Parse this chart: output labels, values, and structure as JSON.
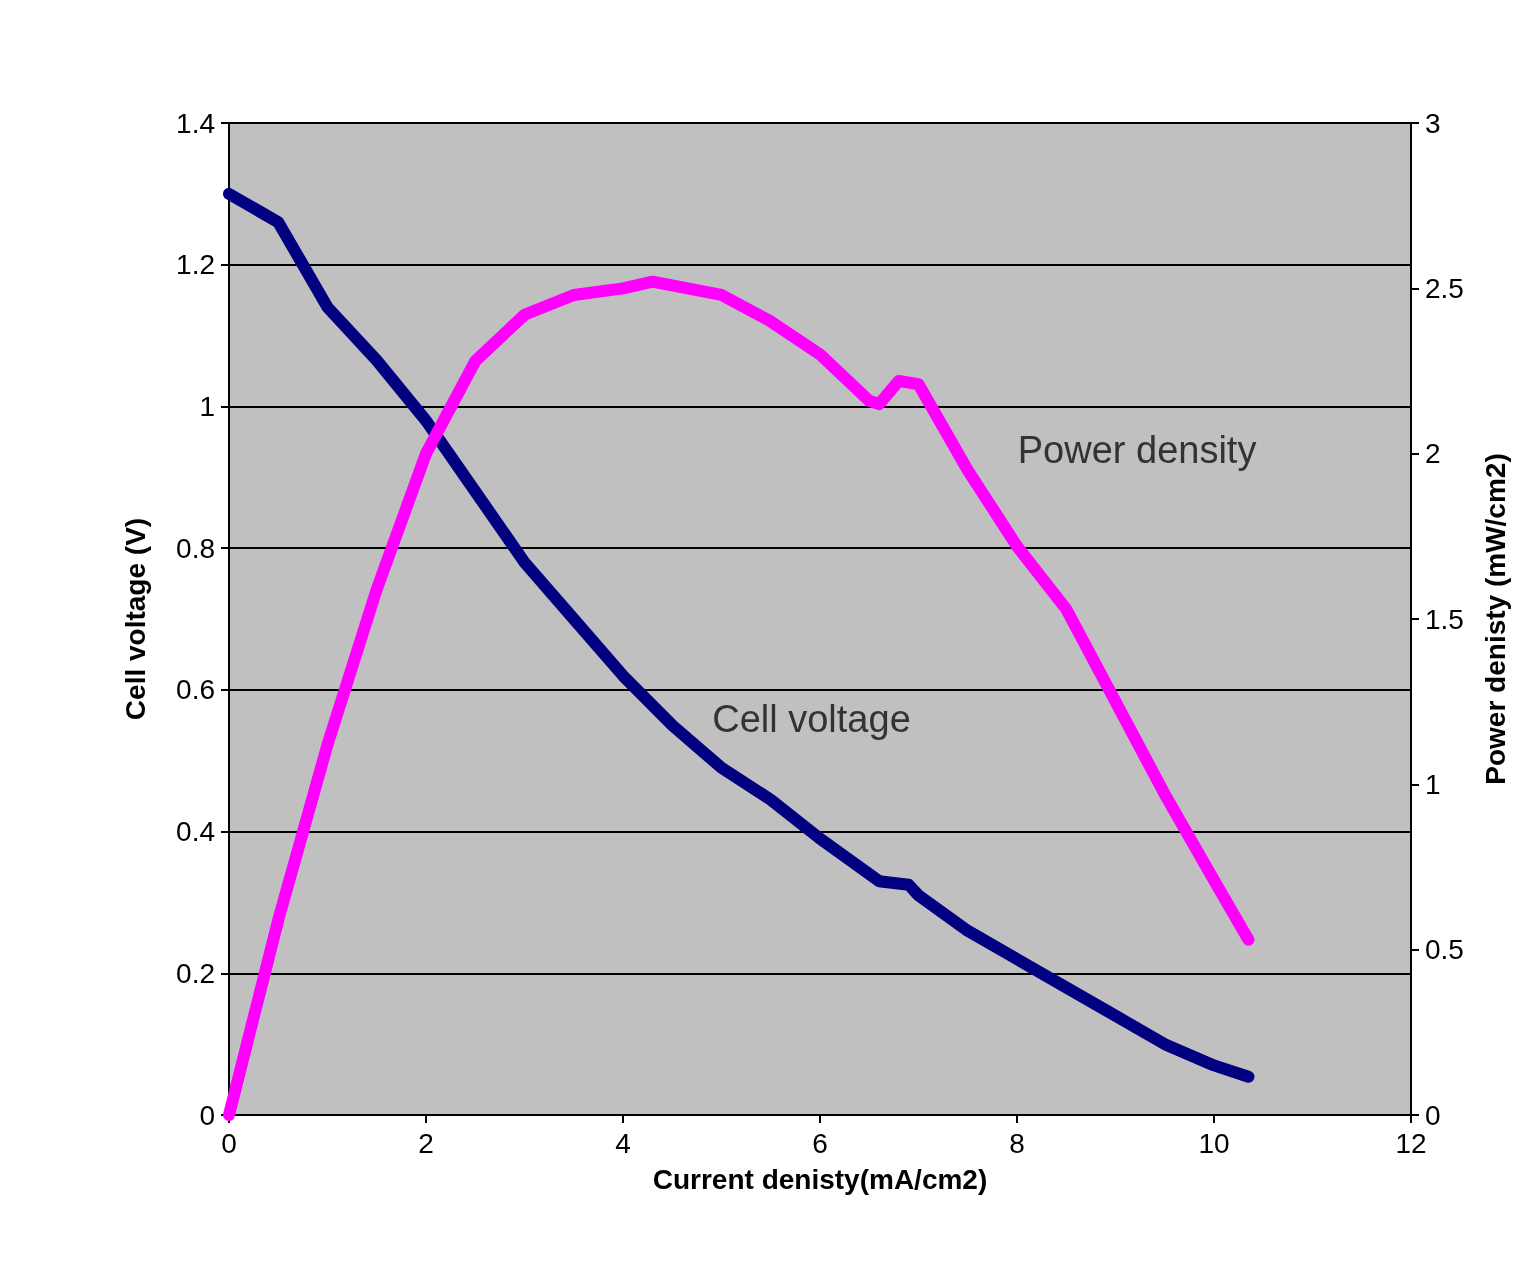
{
  "chart_data": {
    "type": "line",
    "xlabel": "Current denisty(mA/cm2)",
    "ylabel": "Cell voltage (V)",
    "y2label": "Power denisty (mW/cm2)",
    "xlim": [
      0,
      12
    ],
    "xticks": [
      0,
      2,
      4,
      6,
      8,
      10,
      12
    ],
    "ylim": [
      0,
      1.4
    ],
    "yticks": [
      0,
      0.2,
      0.4,
      0.6,
      0.8,
      1,
      1.2,
      1.4
    ],
    "y2lim": [
      0,
      3
    ],
    "y2ticks": [
      0,
      0.5,
      1,
      1.5,
      2,
      2.5,
      3
    ],
    "grid": "y",
    "legend": false,
    "marker": "none",
    "line_style": "solid",
    "series": [
      {
        "name": "Cell voltage",
        "color": "#000080",
        "x": [
          0,
          0.5,
          1,
          1.5,
          2,
          2.5,
          3,
          3.5,
          4,
          4.5,
          5,
          5.5,
          6,
          6.6,
          6.9,
          7,
          7.5,
          8,
          8.5,
          9,
          9.5,
          10,
          10.35
        ],
        "values": [
          1.3,
          1.26,
          1.14,
          1.065,
          0.98,
          0.88,
          0.78,
          0.7,
          0.62,
          0.55,
          0.49,
          0.445,
          0.39,
          0.33,
          0.325,
          0.31,
          0.26,
          0.22,
          0.18,
          0.14,
          0.1,
          0.07,
          0.054
        ]
      },
      {
        "name": "Power density",
        "color": "#ff00ff",
        "axis": "y2",
        "x": [
          0,
          0.5,
          1,
          1.5,
          2,
          2.5,
          3,
          3.5,
          4,
          4.3,
          5,
          5.5,
          6,
          6.5,
          6.6,
          6.8,
          7,
          7.5,
          8,
          8.5,
          9,
          9.5,
          10,
          10.35
        ],
        "values": [
          0,
          0.59,
          1.12,
          1.59,
          2.0,
          2.28,
          2.42,
          2.48,
          2.5,
          2.52,
          2.48,
          2.4,
          2.3,
          2.16,
          2.15,
          2.22,
          2.21,
          1.95,
          1.72,
          1.53,
          1.25,
          0.97,
          0.71,
          0.53
        ]
      }
    ]
  }
}
